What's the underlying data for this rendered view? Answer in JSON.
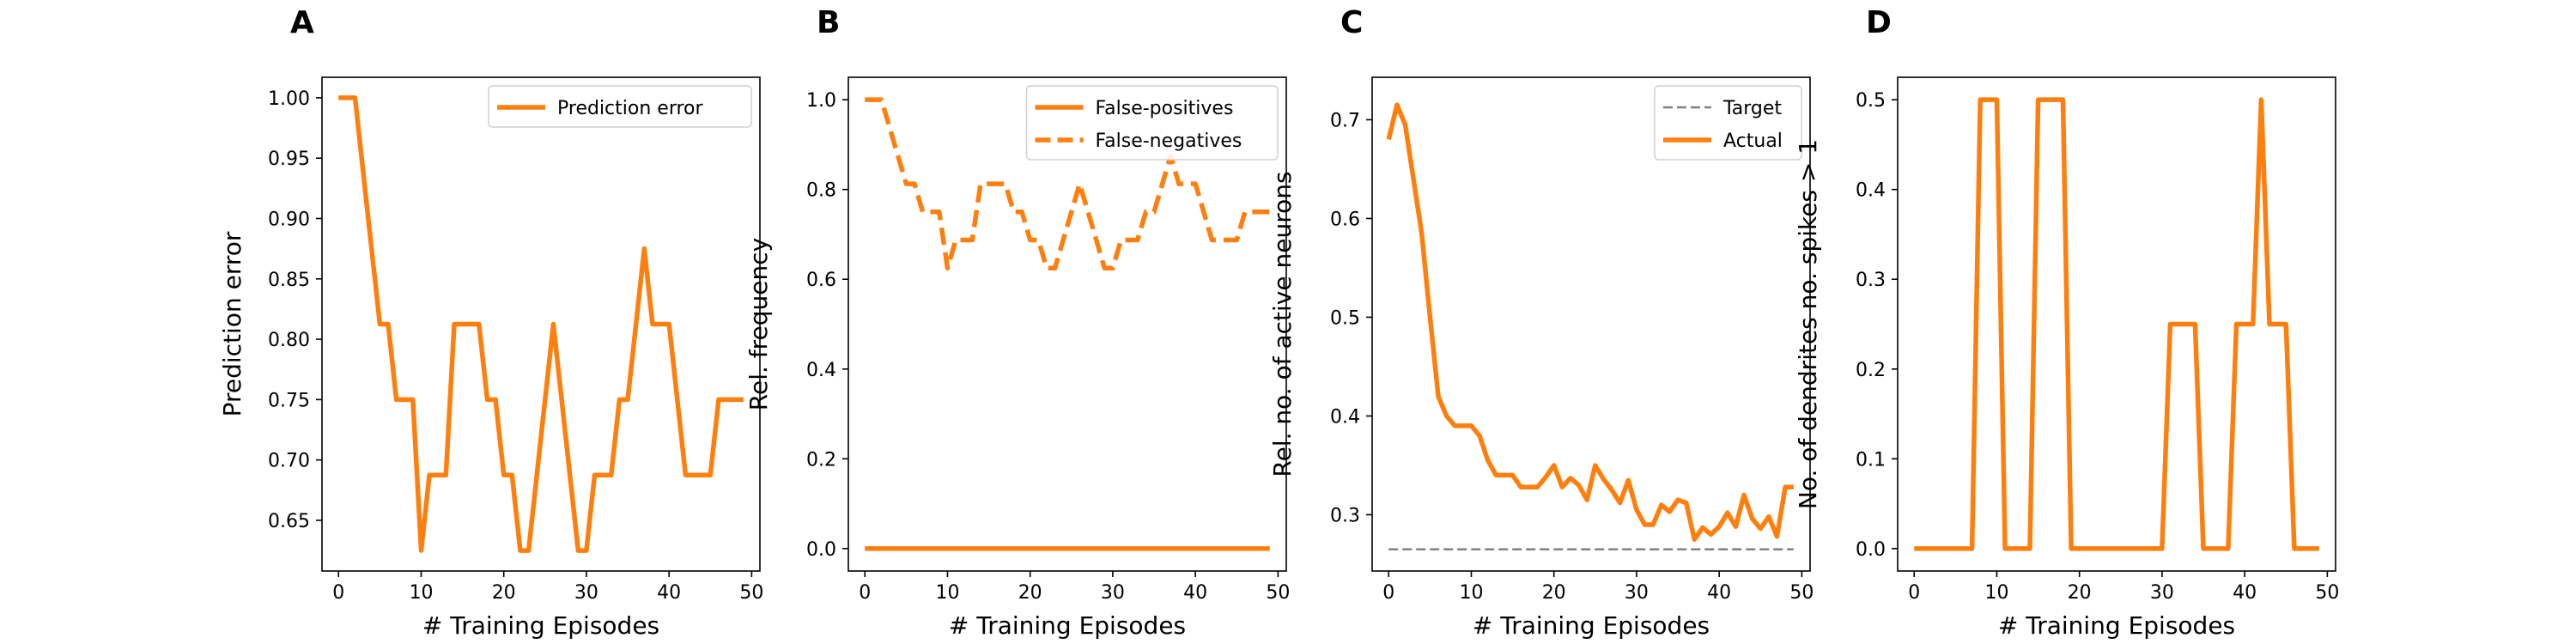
{
  "chart_data": [
    {
      "panel": "A",
      "type": "line",
      "xlabel": "# Training Episodes",
      "ylabel": "Prediction error",
      "xlim": [
        -2,
        51
      ],
      "ylim": [
        0.608,
        1.017
      ],
      "xticks": [
        0,
        10,
        20,
        30,
        40,
        50
      ],
      "yticks": [
        0.65,
        0.7,
        0.75,
        0.8,
        0.85,
        0.9,
        0.95,
        1.0
      ],
      "ytick_labels": [
        "0.65",
        "0.70",
        "0.75",
        "0.80",
        "0.85",
        "0.90",
        "0.95",
        "1.00"
      ],
      "legend": "top-right",
      "series": [
        {
          "name": "Prediction error",
          "color": "#ff7f0e",
          "dash": "solid",
          "x": [
            0,
            1,
            2,
            3,
            4,
            5,
            6,
            7,
            8,
            9,
            10,
            11,
            12,
            13,
            14,
            15,
            16,
            17,
            18,
            19,
            20,
            21,
            22,
            23,
            24,
            25,
            26,
            27,
            28,
            29,
            30,
            31,
            32,
            33,
            34,
            35,
            36,
            37,
            38,
            39,
            40,
            41,
            42,
            43,
            44,
            45,
            46,
            47,
            48,
            49
          ],
          "values": [
            1.0,
            1.0,
            1.0,
            0.9375,
            0.875,
            0.8125,
            0.8125,
            0.75,
            0.75,
            0.75,
            0.625,
            0.6875,
            0.6875,
            0.6875,
            0.8125,
            0.8125,
            0.8125,
            0.8125,
            0.75,
            0.75,
            0.6875,
            0.6875,
            0.625,
            0.625,
            0.6875,
            0.75,
            0.8125,
            0.75,
            0.6875,
            0.625,
            0.625,
            0.6875,
            0.6875,
            0.6875,
            0.75,
            0.75,
            0.8125,
            0.875,
            0.8125,
            0.8125,
            0.8125,
            0.75,
            0.6875,
            0.6875,
            0.6875,
            0.6875,
            0.75,
            0.75,
            0.75,
            0.75
          ]
        }
      ]
    },
    {
      "panel": "B",
      "type": "line",
      "xlabel": "# Training Episodes",
      "ylabel": "Rel. frequency",
      "xlim": [
        -2,
        51
      ],
      "ylim": [
        -0.05,
        1.05
      ],
      "xticks": [
        0,
        10,
        20,
        30,
        40,
        50
      ],
      "yticks": [
        0.0,
        0.2,
        0.4,
        0.6,
        0.8,
        1.0
      ],
      "ytick_labels": [
        "0.0",
        "0.2",
        "0.4",
        "0.6",
        "0.8",
        "1.0"
      ],
      "legend": "top-right",
      "series": [
        {
          "name": "False-positives",
          "color": "#ff7f0e",
          "dash": "solid",
          "x": [
            0,
            49
          ],
          "values": [
            0.0,
            0.0
          ]
        },
        {
          "name": "False-negatives",
          "color": "#ff7f0e",
          "dash": "dashed",
          "x": [
            0,
            1,
            2,
            3,
            4,
            5,
            6,
            7,
            8,
            9,
            10,
            11,
            12,
            13,
            14,
            15,
            16,
            17,
            18,
            19,
            20,
            21,
            22,
            23,
            24,
            25,
            26,
            27,
            28,
            29,
            30,
            31,
            32,
            33,
            34,
            35,
            36,
            37,
            38,
            39,
            40,
            41,
            42,
            43,
            44,
            45,
            46,
            47,
            48,
            49
          ],
          "values": [
            1.0,
            1.0,
            1.0,
            0.9375,
            0.875,
            0.8125,
            0.8125,
            0.75,
            0.75,
            0.75,
            0.625,
            0.6875,
            0.6875,
            0.6875,
            0.8125,
            0.8125,
            0.8125,
            0.8125,
            0.75,
            0.75,
            0.6875,
            0.6875,
            0.625,
            0.625,
            0.6875,
            0.75,
            0.8125,
            0.75,
            0.6875,
            0.625,
            0.625,
            0.6875,
            0.6875,
            0.6875,
            0.75,
            0.75,
            0.8125,
            0.875,
            0.8125,
            0.8125,
            0.8125,
            0.75,
            0.6875,
            0.6875,
            0.6875,
            0.6875,
            0.75,
            0.75,
            0.75,
            0.75
          ]
        }
      ]
    },
    {
      "panel": "C",
      "type": "line",
      "xlabel": "# Training Episodes",
      "ylabel": "Rel. no. of active neurons",
      "xlim": [
        -2,
        51
      ],
      "ylim": [
        0.243,
        0.743
      ],
      "xticks": [
        0,
        10,
        20,
        30,
        40,
        50
      ],
      "yticks": [
        0.3,
        0.4,
        0.5,
        0.6,
        0.7
      ],
      "ytick_labels": [
        "0.3",
        "0.4",
        "0.5",
        "0.6",
        "0.7"
      ],
      "legend": "top-right",
      "series": [
        {
          "name": "Target",
          "color": "#808080",
          "dash": "dashed",
          "x": [
            0,
            49
          ],
          "values": [
            0.265,
            0.265
          ]
        },
        {
          "name": "Actual",
          "color": "#ff7f0e",
          "dash": "solid",
          "x": [
            0,
            1,
            2,
            3,
            4,
            5,
            6,
            7,
            8,
            9,
            10,
            11,
            12,
            13,
            14,
            15,
            16,
            17,
            18,
            19,
            20,
            21,
            22,
            23,
            24,
            25,
            26,
            27,
            28,
            29,
            30,
            31,
            32,
            33,
            34,
            35,
            36,
            37,
            38,
            39,
            40,
            41,
            42,
            43,
            44,
            45,
            46,
            47,
            48,
            49
          ],
          "values": [
            0.68,
            0.715,
            0.695,
            0.64,
            0.585,
            0.5,
            0.42,
            0.4,
            0.39,
            0.39,
            0.39,
            0.38,
            0.355,
            0.34,
            0.34,
            0.34,
            0.328,
            0.328,
            0.328,
            0.338,
            0.35,
            0.328,
            0.337,
            0.33,
            0.315,
            0.35,
            0.336,
            0.325,
            0.312,
            0.335,
            0.305,
            0.29,
            0.29,
            0.31,
            0.303,
            0.315,
            0.312,
            0.275,
            0.287,
            0.28,
            0.288,
            0.302,
            0.288,
            0.32,
            0.296,
            0.286,
            0.298,
            0.278,
            0.328,
            0.328
          ]
        }
      ]
    },
    {
      "panel": "D",
      "type": "line",
      "xlabel": "# Training Episodes",
      "ylabel": "No. of dendrites no. spikes > 1",
      "xlim": [
        -2,
        51
      ],
      "ylim": [
        -0.025,
        0.525
      ],
      "xticks": [
        0,
        10,
        20,
        30,
        40,
        50
      ],
      "yticks": [
        0.0,
        0.1,
        0.2,
        0.3,
        0.4,
        0.5
      ],
      "ytick_labels": [
        "0.0",
        "0.1",
        "0.2",
        "0.3",
        "0.4",
        "0.5"
      ],
      "legend": "none",
      "series": [
        {
          "name": "",
          "color": "#ff7f0e",
          "dash": "solid",
          "x": [
            0,
            1,
            2,
            3,
            4,
            5,
            6,
            7,
            8,
            9,
            10,
            11,
            12,
            13,
            14,
            15,
            16,
            17,
            18,
            19,
            20,
            21,
            22,
            23,
            24,
            25,
            26,
            27,
            28,
            29,
            30,
            31,
            32,
            33,
            34,
            35,
            36,
            37,
            38,
            39,
            40,
            41,
            42,
            43,
            44,
            45,
            46,
            47,
            48,
            49
          ],
          "values": [
            0,
            0,
            0,
            0,
            0,
            0,
            0,
            0,
            0.5,
            0.5,
            0.5,
            0,
            0,
            0,
            0,
            0.5,
            0.5,
            0.5,
            0.5,
            0,
            0,
            0,
            0,
            0,
            0,
            0,
            0,
            0,
            0,
            0,
            0,
            0.25,
            0.25,
            0.25,
            0.25,
            0,
            0,
            0,
            0,
            0.25,
            0.25,
            0.25,
            0.5,
            0.25,
            0.25,
            0.25,
            0,
            0,
            0,
            0
          ]
        }
      ]
    }
  ]
}
